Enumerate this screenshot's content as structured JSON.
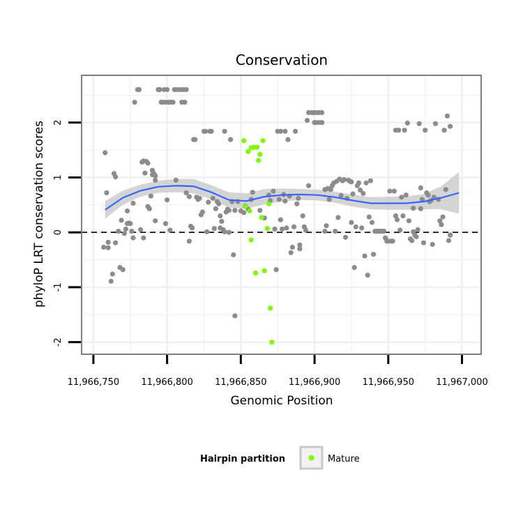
{
  "chart_data": {
    "type": "scatter",
    "title": "Conservation",
    "xlabel": "Genomic Position",
    "ylabel": "phyloP LRT conservation scores",
    "xlim": [
      11966742,
      11967013
    ],
    "ylim": [
      -2.22,
      2.86
    ],
    "x_ticks": [
      11966750,
      11966800,
      11966850,
      11966900,
      11966950,
      11967000
    ],
    "x_tick_labels": [
      "11,966,750",
      "11,966,800",
      "11,966,850",
      "11,966,900",
      "11,966,950",
      "11,967,000"
    ],
    "y_ticks": [
      -2,
      -1,
      0,
      1,
      2
    ],
    "y_tick_labels": [
      "-2",
      "-1",
      "0",
      "1",
      "2"
    ],
    "grid": true,
    "reference_line": {
      "y": 0,
      "style": "dashed"
    },
    "legend": {
      "title": "Hairpin partition",
      "position": "bottom",
      "entries": [
        {
          "label": "Mature",
          "color": "#7cfc00"
        }
      ]
    },
    "colors": {
      "background_points": "#8c8c8c",
      "mature": "#7cfc00",
      "smooth": "#3366ff",
      "ribbon": "#cccccc",
      "panel_border": "#7f7f7f",
      "grid": "#f0f0f0"
    },
    "series": [
      {
        "points": [
          [
            11966758,
            1.45
          ],
          [
            11966759,
            0.72
          ],
          [
            11966757,
            -0.27
          ],
          [
            11966760,
            -0.28
          ],
          [
            11966760,
            -0.18
          ],
          [
            11966762,
            -0.89
          ],
          [
            11966763,
            -0.76
          ],
          [
            11966764,
            1.07
          ],
          [
            11966765,
            -0.19
          ],
          [
            11966765,
            1.01
          ],
          [
            11966767,
            0.02
          ],
          [
            11966768,
            -0.64
          ],
          [
            11966769,
            0.22
          ],
          [
            11966770,
            -0.68
          ],
          [
            11966771,
            -0.02
          ],
          [
            11966772,
            0.06
          ],
          [
            11966773,
            0.16
          ],
          [
            11966773,
            0.39
          ],
          [
            11966774,
            0.17
          ],
          [
            11966775,
            0.16
          ],
          [
            11966776,
            0.02
          ],
          [
            11966777,
            -0.1
          ],
          [
            11966777,
            0.53
          ],
          [
            11966778,
            2.37
          ],
          [
            11966780,
            2.6
          ],
          [
            11966781,
            2.6
          ],
          [
            11966782,
            0.05
          ],
          [
            11966783,
            1.28
          ],
          [
            11966784,
            1.3
          ],
          [
            11966784,
            -0.1
          ],
          [
            11966785,
            1.08
          ],
          [
            11966786,
            1.29
          ],
          [
            11966787,
            1.26
          ],
          [
            11966787,
            0.47
          ],
          [
            11966788,
            0.43
          ],
          [
            11966789,
            0.66
          ],
          [
            11966790,
            1.13
          ],
          [
            11966790,
            1.05
          ],
          [
            11966791,
            1.07
          ],
          [
            11966792,
            1.03
          ],
          [
            11966792,
            0.95
          ],
          [
            11966792,
            0.21
          ],
          [
            11966794,
            2.6
          ],
          [
            11966795,
            2.6
          ],
          [
            11966796,
            2.37
          ],
          [
            11966797,
            2.37
          ],
          [
            11966798,
            2.6
          ],
          [
            11966799,
            2.37
          ],
          [
            11966799,
            0.16
          ],
          [
            11966800,
            2.6
          ],
          [
            11966800,
            0.59
          ],
          [
            11966801,
            2.37
          ],
          [
            11966802,
            2.37
          ],
          [
            11966802,
            0.04
          ],
          [
            11966804,
            2.37
          ],
          [
            11966805,
            2.6
          ],
          [
            11966806,
            0.95
          ],
          [
            11966807,
            2.6
          ],
          [
            11966809,
            2.6
          ],
          [
            11966810,
            2.37
          ],
          [
            11966811,
            2.6
          ],
          [
            11966813,
            2.6
          ],
          [
            11966812,
            2.37
          ],
          [
            11966813,
            0.72
          ],
          [
            11966815,
            0.65
          ],
          [
            11966815,
            -0.16
          ],
          [
            11966816,
            0.11
          ],
          [
            11966817,
            0.08
          ],
          [
            11966818,
            1.69
          ],
          [
            11966819,
            1.69
          ],
          [
            11966820,
            0.64
          ],
          [
            11966821,
            0.6
          ],
          [
            11966822,
            0.62
          ],
          [
            11966823,
            0.32
          ],
          [
            11966824,
            0.37
          ],
          [
            11966825,
            1.84
          ],
          [
            11966826,
            1.84
          ],
          [
            11966827,
            0.01
          ],
          [
            11966828,
            0.55
          ],
          [
            11966829,
            1.84
          ],
          [
            11966830,
            1.84
          ],
          [
            11966831,
            0.62
          ],
          [
            11966832,
            0.07
          ],
          [
            11966833,
            0.43
          ],
          [
            11966834,
            0.56
          ],
          [
            11966835,
            0.52
          ],
          [
            11966836,
            0.08
          ],
          [
            11966836,
            0.3
          ],
          [
            11966837,
            0.2
          ],
          [
            11966838,
            0.05
          ],
          [
            11966839,
            1.84
          ],
          [
            11966839,
            0.01
          ],
          [
            11966840,
            0.37
          ],
          [
            11966841,
            0.42
          ],
          [
            11966842,
            0.4
          ],
          [
            11966842,
            0
          ],
          [
            11966843,
            1.69
          ],
          [
            11966844,
            0.56
          ],
          [
            11966845,
            -0.41
          ],
          [
            11966846,
            0.4
          ],
          [
            11966846,
            -1.52
          ],
          [
            11966848,
            0.56
          ],
          [
            11966850,
            0.39
          ],
          [
            11966852,
            0.36
          ],
          [
            11966853,
            0.48
          ],
          [
            11966855,
            0.42
          ],
          [
            11966857,
            0.6
          ],
          [
            11966858,
            0.73
          ],
          [
            11966863,
            0.4
          ],
          [
            11966866,
            0.26
          ],
          [
            11966869,
            0.68
          ],
          [
            11966870,
            0.58
          ],
          [
            11966872,
            0.75
          ],
          [
            11966873,
            0.06
          ],
          [
            11966874,
            -0.68
          ],
          [
            11966875,
            1.84
          ],
          [
            11966876,
            0.6
          ],
          [
            11966877,
            0.23
          ],
          [
            11966877,
            1.84
          ],
          [
            11966878,
            0.06
          ],
          [
            11966879,
            0.69
          ],
          [
            11966880,
            1.84
          ],
          [
            11966880,
            0.57
          ],
          [
            11966881,
            0.08
          ],
          [
            11966882,
            1.69
          ],
          [
            11966883,
            0.66
          ],
          [
            11966884,
            -0.37
          ],
          [
            11966885,
            -0.27
          ],
          [
            11966886,
            0.1
          ],
          [
            11966887,
            1.84
          ],
          [
            11966888,
            0.52
          ],
          [
            11966889,
            0.62
          ],
          [
            11966890,
            -0.23
          ],
          [
            11966890,
            -0.3
          ],
          [
            11966892,
            0.3
          ],
          [
            11966893,
            0.1
          ],
          [
            11966894,
            0.04
          ],
          [
            11966895,
            2.04
          ],
          [
            11966896,
            2.18
          ],
          [
            11966896,
            0.85
          ],
          [
            11966898,
            2.18
          ],
          [
            11966899,
            2.18
          ],
          [
            11966900,
            2.0
          ],
          [
            11966900,
            2.18
          ],
          [
            11966901,
            2.0
          ],
          [
            11966902,
            2.18
          ],
          [
            11966903,
            2.0
          ],
          [
            11966903,
            2.18
          ],
          [
            11966905,
            2.18
          ],
          [
            11966905,
            2.0
          ],
          [
            11966907,
            0.78
          ],
          [
            11966907,
            0.02
          ],
          [
            11966908,
            0.12
          ],
          [
            11966909,
            0.8
          ],
          [
            11966910,
            0.6
          ],
          [
            11966911,
            0.78
          ],
          [
            11966912,
            0.85
          ],
          [
            11966913,
            0.9
          ],
          [
            11966914,
            0.02
          ],
          [
            11966915,
            0.93
          ],
          [
            11966916,
            0.27
          ],
          [
            11966917,
            0.97
          ],
          [
            11966918,
            0.67
          ],
          [
            11966919,
            0.94
          ],
          [
            11966920,
            0.96
          ],
          [
            11966921,
            -0.09
          ],
          [
            11966922,
            0.62
          ],
          [
            11966923,
            0.95
          ],
          [
            11966924,
            0.93
          ],
          [
            11966925,
            0.92
          ],
          [
            11966925,
            0.18
          ],
          [
            11966926,
            0.7
          ],
          [
            11966927,
            -0.64
          ],
          [
            11966928,
            0.1
          ],
          [
            11966929,
            0.85
          ],
          [
            11966930,
            0.9
          ],
          [
            11966931,
            0.77
          ],
          [
            11966932,
            0.08
          ],
          [
            11966933,
            0.71
          ],
          [
            11966934,
            -0.43
          ],
          [
            11966935,
            0.9
          ],
          [
            11966936,
            -0.78
          ],
          [
            11966937,
            0.28
          ],
          [
            11966938,
            0.94
          ],
          [
            11966939,
            0.18
          ],
          [
            11966940,
            -0.4
          ],
          [
            11966941,
            0.02
          ],
          [
            11966942,
            0.02
          ],
          [
            11966943,
            0.02
          ],
          [
            11966944,
            0.02
          ],
          [
            11966945,
            0.02
          ],
          [
            11966946,
            0.02
          ],
          [
            11966947,
            0.02
          ],
          [
            11966948,
            -0.1
          ],
          [
            11966949,
            -0.16
          ],
          [
            11966950,
            -0.16
          ],
          [
            11966951,
            0.75
          ],
          [
            11966952,
            -0.16
          ],
          [
            11966953,
            -0.16
          ],
          [
            11966954,
            0.75
          ],
          [
            11966955,
            0.3
          ],
          [
            11966955,
            1.86
          ],
          [
            11966956,
            0.23
          ],
          [
            11966957,
            1.86
          ],
          [
            11966958,
            0.04
          ],
          [
            11966959,
            0.64
          ],
          [
            11966960,
            0.3
          ],
          [
            11966961,
            1.86
          ],
          [
            11966962,
            0.68
          ],
          [
            11966963,
            1.99
          ],
          [
            11966964,
            0.21
          ],
          [
            11966965,
            -0.12
          ],
          [
            11966966,
            -0.15
          ],
          [
            11966967,
            0.01
          ],
          [
            11966967,
            0.44
          ],
          [
            11966968,
            -0.05
          ],
          [
            11966969,
            -0.08
          ],
          [
            11966970,
            0.05
          ],
          [
            11966971,
            1.98
          ],
          [
            11966972,
            0.81
          ],
          [
            11966972,
            0.43
          ],
          [
            11966973,
            0.6
          ],
          [
            11966974,
            -0.19
          ],
          [
            11966975,
            1.86
          ],
          [
            11966976,
            0.72
          ],
          [
            11966977,
            0.68
          ],
          [
            11966978,
            0.56
          ],
          [
            11966979,
            0.58
          ],
          [
            11966980,
            -0.22
          ],
          [
            11966981,
            0.64
          ],
          [
            11966982,
            1.98
          ],
          [
            11966984,
            0.6
          ],
          [
            11966985,
            0.21
          ],
          [
            11966986,
            0.14
          ],
          [
            11966987,
            0.28
          ],
          [
            11966988,
            1.86
          ],
          [
            11966989,
            0.78
          ],
          [
            11966990,
            2.12
          ],
          [
            11966991,
            -0.15
          ],
          [
            11966992,
            -0.05
          ],
          [
            11966992,
            1.93
          ]
        ]
      },
      {
        "name": "Mature",
        "points": [
          [
            11966852,
            1.67
          ],
          [
            11966855,
            1.47
          ],
          [
            11966857,
            1.54
          ],
          [
            11966859,
            1.55
          ],
          [
            11966861,
            1.55
          ],
          [
            11966862,
            1.31
          ],
          [
            11966863,
            1.42
          ],
          [
            11966865,
            1.67
          ],
          [
            11966853,
            0.47
          ],
          [
            11966856,
            0.39
          ],
          [
            11966857,
            -0.14
          ],
          [
            11966860,
            -0.74
          ],
          [
            11966864,
            0.27
          ],
          [
            11966866,
            -0.7
          ],
          [
            11966868,
            0.07
          ],
          [
            11966869,
            0.52
          ],
          [
            11966870,
            -1.38
          ],
          [
            11966871,
            -2.0
          ]
        ]
      }
    ],
    "smooth": {
      "x": [
        11966758,
        11966770,
        11966782,
        11966794,
        11966806,
        11966818,
        11966830,
        11966842,
        11966854,
        11966866,
        11966878,
        11966890,
        11966902,
        11966914,
        11966926,
        11966938,
        11966950,
        11966962,
        11966974,
        11966986,
        11966998
      ],
      "y": [
        0.41,
        0.63,
        0.76,
        0.83,
        0.85,
        0.84,
        0.73,
        0.59,
        0.57,
        0.65,
        0.68,
        0.69,
        0.68,
        0.64,
        0.58,
        0.53,
        0.53,
        0.53,
        0.56,
        0.63,
        0.72
      ],
      "lower": [
        0.25,
        0.5,
        0.65,
        0.72,
        0.73,
        0.71,
        0.6,
        0.45,
        0.43,
        0.51,
        0.56,
        0.59,
        0.58,
        0.54,
        0.47,
        0.42,
        0.41,
        0.41,
        0.42,
        0.42,
        0.34
      ],
      "upper": [
        0.57,
        0.76,
        0.87,
        0.94,
        0.97,
        0.97,
        0.86,
        0.73,
        0.71,
        0.79,
        0.8,
        0.79,
        0.78,
        0.74,
        0.69,
        0.64,
        0.65,
        0.65,
        0.7,
        0.84,
        1.1
      ]
    }
  }
}
